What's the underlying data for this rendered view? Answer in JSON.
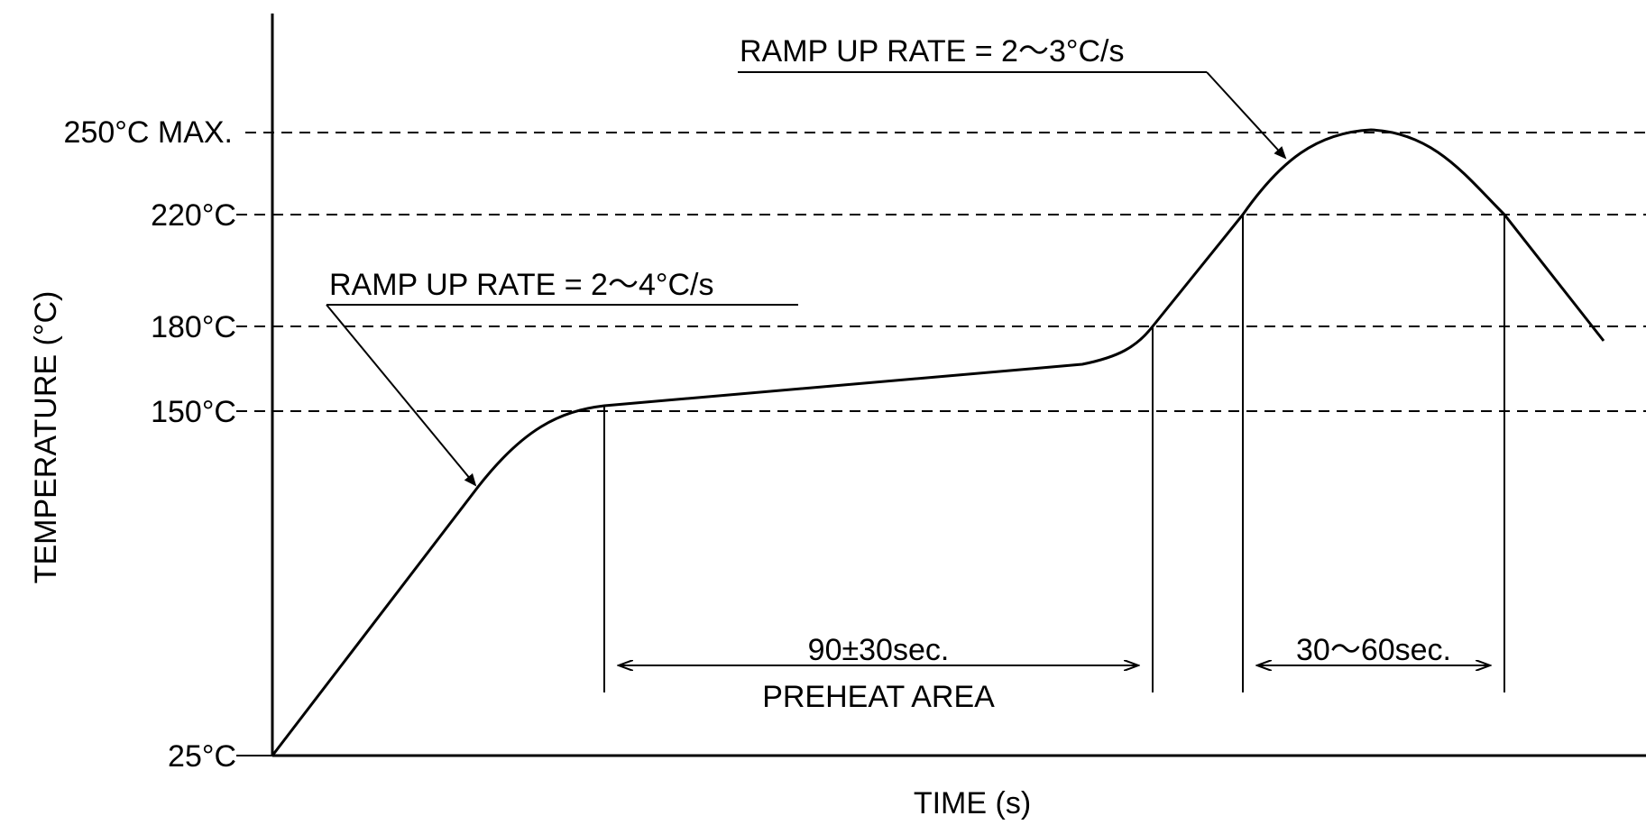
{
  "y_axis": {
    "title": "TEMPERATURE (°C)",
    "ticks": [
      {
        "label": "250°C MAX.",
        "value": 250
      },
      {
        "label": "220°C",
        "value": 220
      },
      {
        "label": "180°C",
        "value": 180
      },
      {
        "label": "150°C",
        "value": 150
      },
      {
        "label": "25°C",
        "value": 25
      }
    ]
  },
  "x_axis": {
    "title": "TIME (s)"
  },
  "annotations": {
    "ramp_up_1": "RAMP UP RATE = 2～4°C/s",
    "ramp_up_2": "RAMP UP RATE = 2～3°C/s",
    "preheat_time": "90±30sec.",
    "preheat_label": "PREHEAT AREA",
    "reflow_time": "30～60sec."
  }
}
